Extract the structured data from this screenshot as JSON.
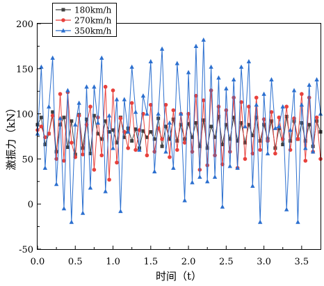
{
  "chart_data": {
    "type": "line",
    "title": "",
    "xlabel": "时间（t）",
    "ylabel": "激振力（kN）",
    "xlim": [
      0.0,
      3.75
    ],
    "ylim": [
      -50,
      200
    ],
    "xticks": [
      0.0,
      0.5,
      1.0,
      1.5,
      2.0,
      2.5,
      3.0,
      3.5
    ],
    "xtick_labels": [
      "0.0",
      "0.5",
      "1.0",
      "1.5",
      "2.0",
      "2.5",
      "3.0",
      "3.5"
    ],
    "yticks": [
      -50,
      0,
      50,
      100,
      150,
      200
    ],
    "ytick_labels": [
      "-50",
      "0",
      "50",
      "100",
      "150",
      "200"
    ],
    "grid": false,
    "legend_position": "top-left",
    "x": [
      0.0,
      0.05,
      0.1,
      0.15,
      0.2,
      0.25,
      0.3,
      0.35,
      0.4,
      0.45,
      0.5,
      0.55,
      0.6,
      0.65,
      0.7,
      0.75,
      0.8,
      0.85,
      0.9,
      0.95,
      1.0,
      1.05,
      1.1,
      1.15,
      1.2,
      1.25,
      1.3,
      1.35,
      1.4,
      1.45,
      1.5,
      1.55,
      1.6,
      1.65,
      1.7,
      1.75,
      1.8,
      1.85,
      1.9,
      1.95,
      2.0,
      2.05,
      2.1,
      2.15,
      2.2,
      2.25,
      2.3,
      2.35,
      2.4,
      2.45,
      2.5,
      2.55,
      2.6,
      2.65,
      2.7,
      2.75,
      2.8,
      2.85,
      2.9,
      2.95,
      3.0,
      3.05,
      3.1,
      3.15,
      3.2,
      3.25,
      3.3,
      3.35,
      3.4,
      3.45,
      3.5,
      3.55,
      3.6,
      3.65,
      3.7,
      3.75
    ],
    "series": [
      {
        "name": "180km/h",
        "color": "#404040",
        "marker": "square",
        "values": [
          88,
          96,
          66,
          78,
          102,
          58,
          88,
          96,
          63,
          92,
          55,
          99,
          62,
          94,
          56,
          98,
          78,
          72,
          92,
          80,
          82,
          68,
          96,
          74,
          84,
          70,
          83,
          62,
          81,
          74,
          80,
          72,
          95,
          64,
          86,
          72,
          94,
          70,
          88,
          72,
          89,
          74,
          90,
          64,
          93,
          62,
          86,
          74,
          97,
          66,
          88,
          72,
          96,
          70,
          90,
          68,
          88,
          76,
          96,
          70,
          88,
          72,
          92,
          62,
          84,
          66,
          97,
          70,
          92,
          72,
          90,
          70,
          88,
          64,
          92,
          80
        ]
      },
      {
        "name": "270km/h",
        "color": "#e8413c",
        "marker": "circle",
        "values": [
          82,
          86,
          74,
          78,
          98,
          50,
          122,
          48,
          124,
          68,
          52,
          98,
          55,
          88,
          108,
          38,
          96,
          54,
          130,
          27,
          126,
          46,
          95,
          80,
          62,
          112,
          60,
          82,
          100,
          54,
          110,
          58,
          84,
          72,
          110,
          52,
          104,
          60,
          100,
          68,
          100,
          58,
          120,
          38,
          115,
          43,
          126,
          54,
          108,
          44,
          104,
          58,
          118,
          40,
          113,
          50,
          108,
          56,
          118,
          60,
          94,
          70,
          102,
          56,
          96,
          72,
          108,
          60,
          95,
          72,
          122,
          48,
          118,
          58,
          96,
          50
        ]
      },
      {
        "name": "350km/h",
        "color": "#2b6fcf",
        "marker": "triangle",
        "values": [
          78,
          152,
          40,
          108,
          162,
          22,
          95,
          -5,
          126,
          -20,
          88,
          112,
          -10,
          130,
          18,
          130,
          90,
          162,
          14,
          98,
          62,
          116,
          -8,
          116,
          80,
          152,
          102,
          60,
          120,
          100,
          158,
          36,
          100,
          172,
          58,
          90,
          40,
          156,
          100,
          4,
          146,
          24,
          175,
          30,
          182,
          25,
          152,
          30,
          140,
          -3,
          128,
          42,
          138,
          40,
          152,
          86,
          158,
          20,
          110,
          -20,
          122,
          56,
          138,
          84,
          86,
          108,
          -6,
          82,
          126,
          -20,
          110,
          62,
          132,
          58,
          138,
          100
        ]
      }
    ]
  }
}
